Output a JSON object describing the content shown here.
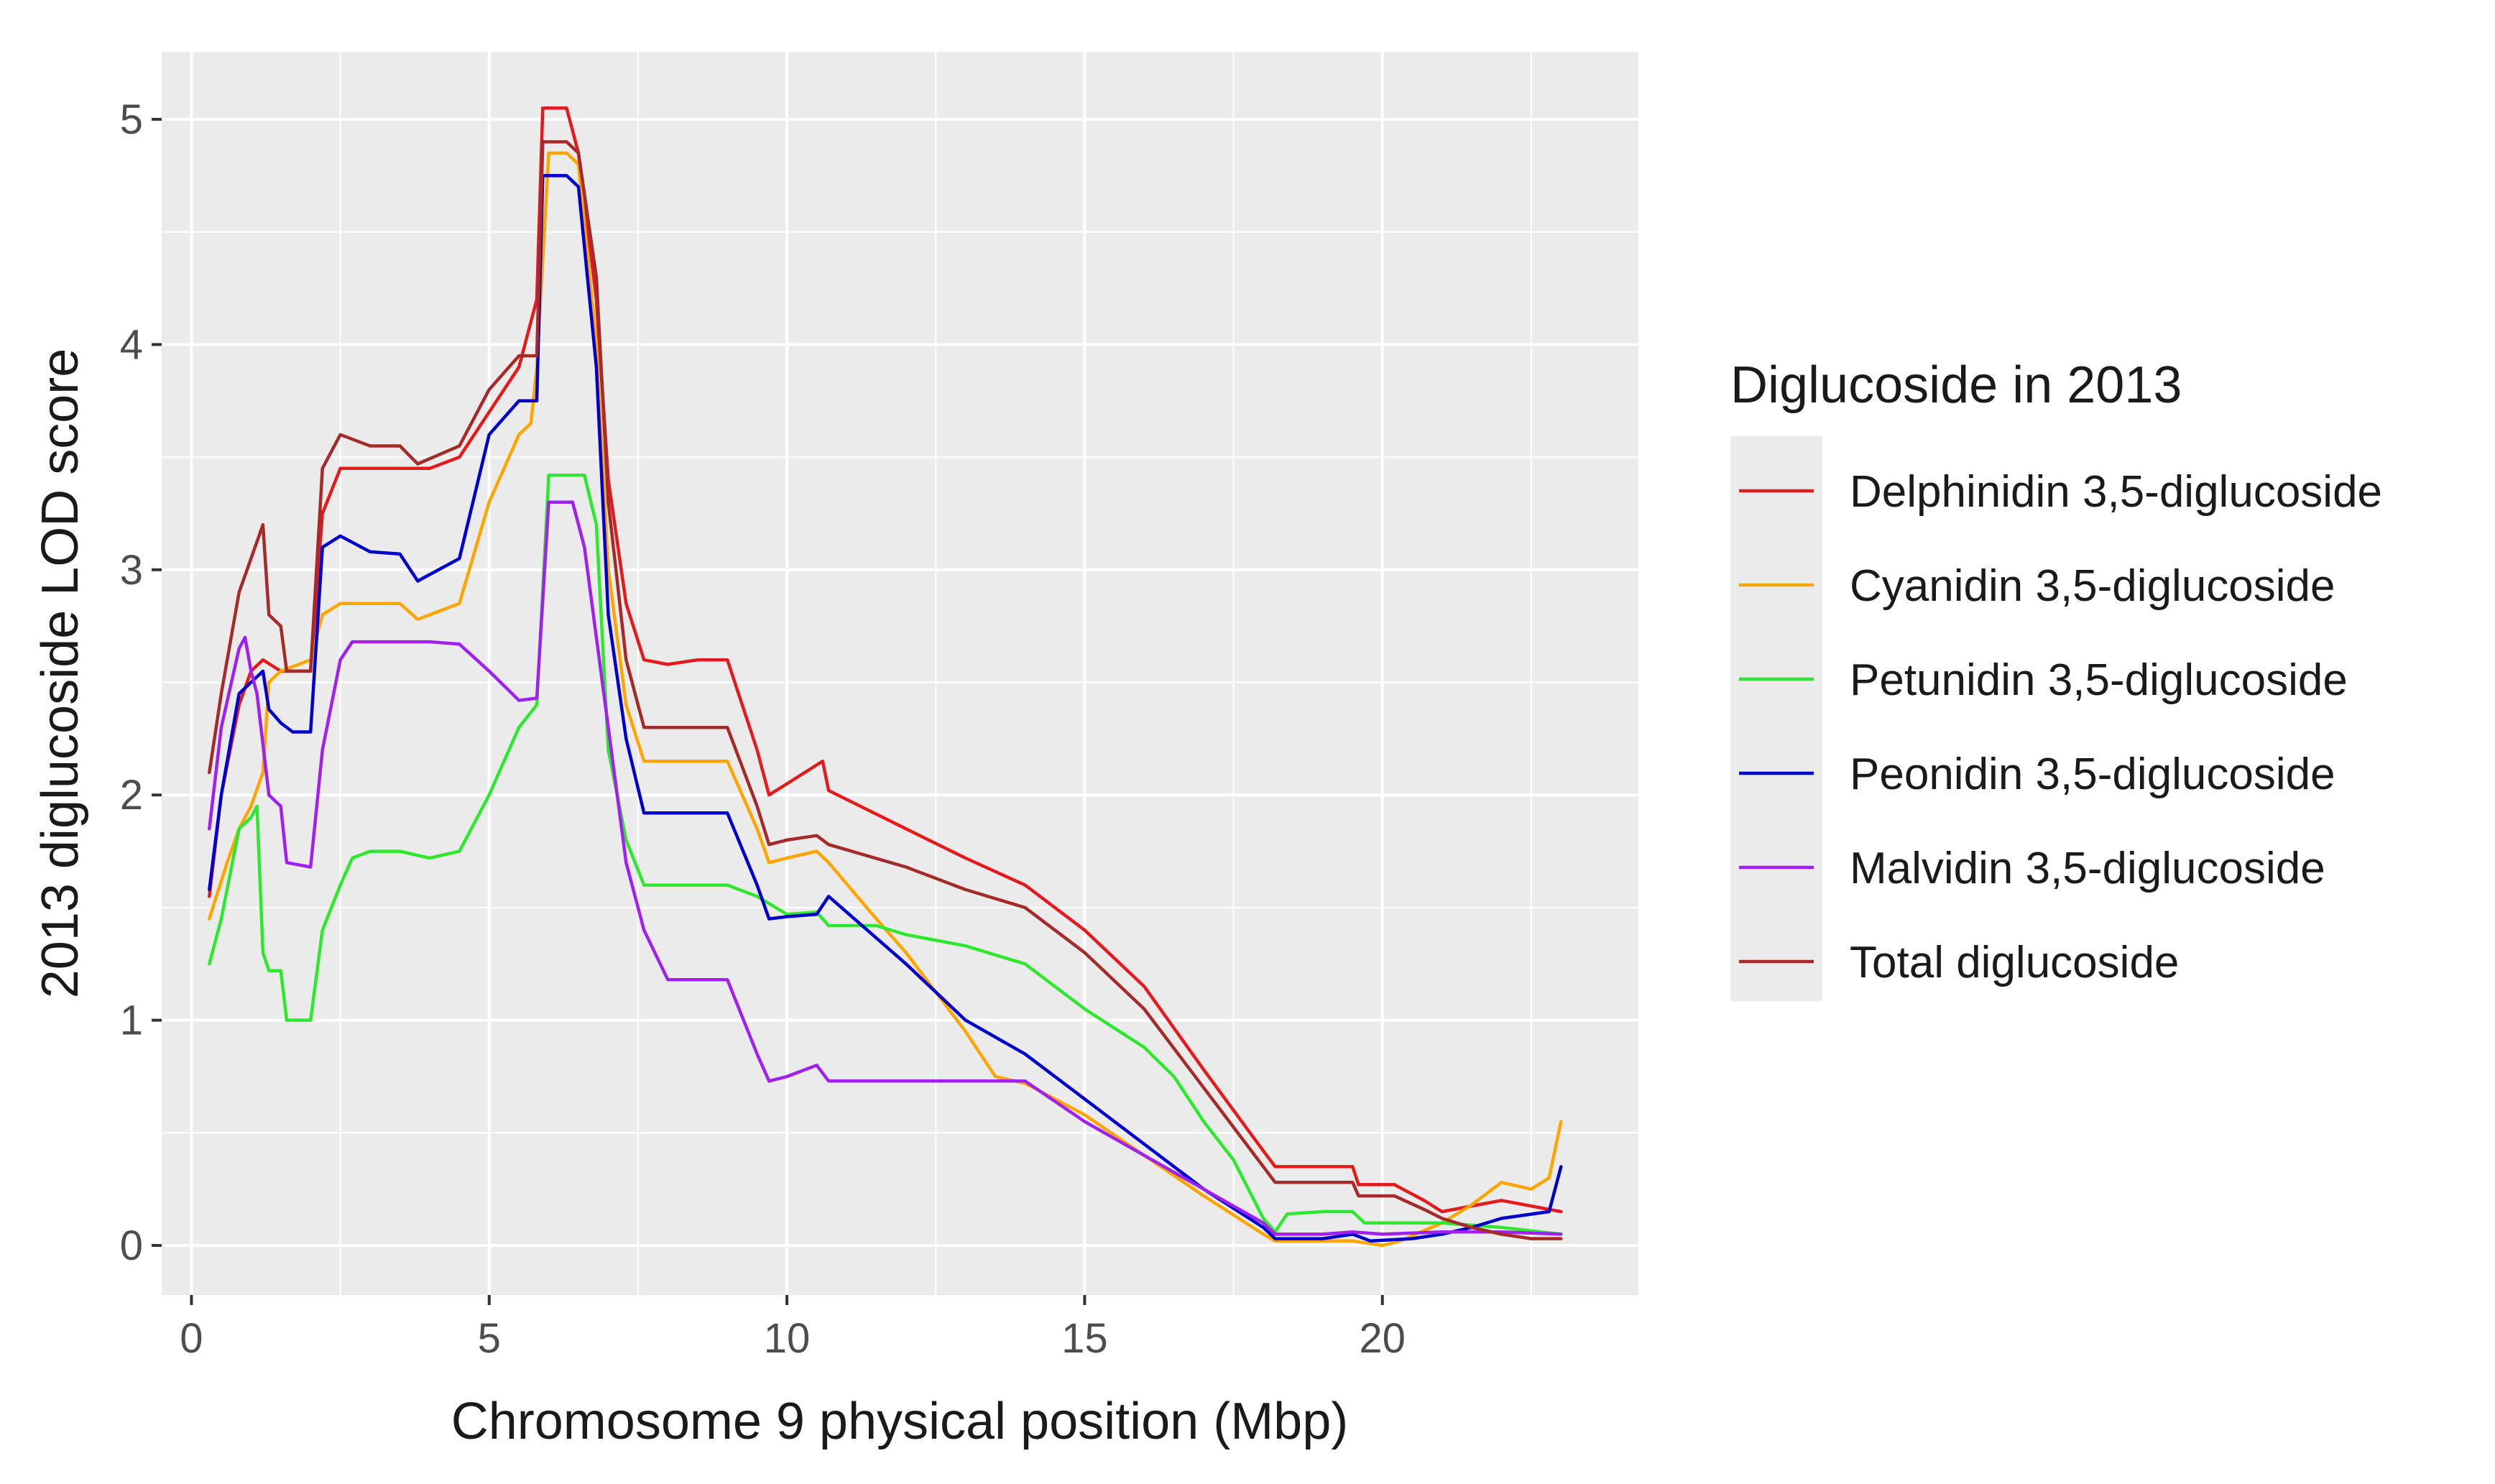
{
  "chart_data": {
    "type": "line",
    "xlabel": "Chromosome 9 physical position (Mbp)",
    "ylabel": "2013 diglucoside LOD score",
    "xlim": [
      -0.5,
      24.3
    ],
    "ylim": [
      -0.22,
      5.3
    ],
    "x_ticks": [
      0,
      5,
      10,
      15,
      20
    ],
    "x_tick_labels": [
      "0",
      "5",
      "10",
      "15",
      "20"
    ],
    "y_ticks": [
      0,
      1,
      2,
      3,
      4,
      5
    ],
    "y_tick_labels": [
      "0",
      "1",
      "2",
      "3",
      "4",
      "5"
    ],
    "grid": true,
    "legend": {
      "title": "Diglucoside in 2013",
      "position": "right"
    },
    "series": [
      {
        "name": "Delphinidin 3,5-diglucoside",
        "color": "#e41a1c",
        "points": [
          [
            0.3,
            1.55
          ],
          [
            0.5,
            2.0
          ],
          [
            0.8,
            2.4
          ],
          [
            1.0,
            2.55
          ],
          [
            1.2,
            2.6
          ],
          [
            1.5,
            2.55
          ],
          [
            2.0,
            2.55
          ],
          [
            2.2,
            3.25
          ],
          [
            2.5,
            3.45
          ],
          [
            3.0,
            3.45
          ],
          [
            3.5,
            3.45
          ],
          [
            4.0,
            3.45
          ],
          [
            4.5,
            3.5
          ],
          [
            5.0,
            3.7
          ],
          [
            5.5,
            3.9
          ],
          [
            5.8,
            4.2
          ],
          [
            5.9,
            5.05
          ],
          [
            6.3,
            5.05
          ],
          [
            6.5,
            4.85
          ],
          [
            6.8,
            4.2
          ],
          [
            7.0,
            3.4
          ],
          [
            7.3,
            2.85
          ],
          [
            7.6,
            2.6
          ],
          [
            8.0,
            2.58
          ],
          [
            8.5,
            2.6
          ],
          [
            9.0,
            2.6
          ],
          [
            9.5,
            2.2
          ],
          [
            9.7,
            2.0
          ],
          [
            10.0,
            2.05
          ],
          [
            10.6,
            2.15
          ],
          [
            10.7,
            2.02
          ],
          [
            12.0,
            1.85
          ],
          [
            13.0,
            1.72
          ],
          [
            14.0,
            1.6
          ],
          [
            15.0,
            1.4
          ],
          [
            16.0,
            1.15
          ],
          [
            17.0,
            0.78
          ],
          [
            18.0,
            0.42
          ],
          [
            18.2,
            0.35
          ],
          [
            19.0,
            0.35
          ],
          [
            19.5,
            0.35
          ],
          [
            19.6,
            0.27
          ],
          [
            20.2,
            0.27
          ],
          [
            20.7,
            0.2
          ],
          [
            21.0,
            0.15
          ],
          [
            22.0,
            0.2
          ],
          [
            23.0,
            0.15
          ]
        ]
      },
      {
        "name": "Cyanidin 3,5-diglucoside",
        "color": "#ffa500",
        "points": [
          [
            0.3,
            1.45
          ],
          [
            0.6,
            1.7
          ],
          [
            0.8,
            1.85
          ],
          [
            1.0,
            1.95
          ],
          [
            1.2,
            2.1
          ],
          [
            1.3,
            2.5
          ],
          [
            1.5,
            2.55
          ],
          [
            2.0,
            2.6
          ],
          [
            2.2,
            2.8
          ],
          [
            2.5,
            2.85
          ],
          [
            3.0,
            2.85
          ],
          [
            3.5,
            2.85
          ],
          [
            3.8,
            2.78
          ],
          [
            4.5,
            2.85
          ],
          [
            5.0,
            3.3
          ],
          [
            5.5,
            3.6
          ],
          [
            5.7,
            3.65
          ],
          [
            5.8,
            3.9
          ],
          [
            6.0,
            4.85
          ],
          [
            6.3,
            4.85
          ],
          [
            6.5,
            4.8
          ],
          [
            6.8,
            4.0
          ],
          [
            7.0,
            3.0
          ],
          [
            7.3,
            2.4
          ],
          [
            7.6,
            2.15
          ],
          [
            8.0,
            2.15
          ],
          [
            9.0,
            2.15
          ],
          [
            9.5,
            1.85
          ],
          [
            9.7,
            1.7
          ],
          [
            10.0,
            1.72
          ],
          [
            10.5,
            1.75
          ],
          [
            10.7,
            1.7
          ],
          [
            11.5,
            1.45
          ],
          [
            12.0,
            1.3
          ],
          [
            13.0,
            0.95
          ],
          [
            13.5,
            0.75
          ],
          [
            14.0,
            0.72
          ],
          [
            15.0,
            0.58
          ],
          [
            16.0,
            0.4
          ],
          [
            17.0,
            0.22
          ],
          [
            18.0,
            0.05
          ],
          [
            18.2,
            0.02
          ],
          [
            19.0,
            0.02
          ],
          [
            19.5,
            0.02
          ],
          [
            20.0,
            0.0
          ],
          [
            20.3,
            0.02
          ],
          [
            21.0,
            0.1
          ],
          [
            21.5,
            0.18
          ],
          [
            22.0,
            0.28
          ],
          [
            22.5,
            0.25
          ],
          [
            22.8,
            0.3
          ],
          [
            23.0,
            0.55
          ]
        ]
      },
      {
        "name": "Petunidin 3,5-diglucoside",
        "color": "#2ee82e",
        "points": [
          [
            0.3,
            1.25
          ],
          [
            0.5,
            1.45
          ],
          [
            0.8,
            1.85
          ],
          [
            1.0,
            1.9
          ],
          [
            1.1,
            1.95
          ],
          [
            1.2,
            1.3
          ],
          [
            1.3,
            1.22
          ],
          [
            1.5,
            1.22
          ],
          [
            1.6,
            1.0
          ],
          [
            2.0,
            1.0
          ],
          [
            2.2,
            1.4
          ],
          [
            2.5,
            1.6
          ],
          [
            2.7,
            1.72
          ],
          [
            3.0,
            1.75
          ],
          [
            3.5,
            1.75
          ],
          [
            4.0,
            1.72
          ],
          [
            4.5,
            1.75
          ],
          [
            5.0,
            2.0
          ],
          [
            5.5,
            2.3
          ],
          [
            5.8,
            2.4
          ],
          [
            6.0,
            3.42
          ],
          [
            6.6,
            3.42
          ],
          [
            6.8,
            3.2
          ],
          [
            7.0,
            2.2
          ],
          [
            7.3,
            1.8
          ],
          [
            7.6,
            1.6
          ],
          [
            8.0,
            1.6
          ],
          [
            8.5,
            1.6
          ],
          [
            9.0,
            1.6
          ],
          [
            9.5,
            1.55
          ],
          [
            10.0,
            1.47
          ],
          [
            10.5,
            1.48
          ],
          [
            10.7,
            1.42
          ],
          [
            11.5,
            1.42
          ],
          [
            12.0,
            1.38
          ],
          [
            13.0,
            1.33
          ],
          [
            14.0,
            1.25
          ],
          [
            15.0,
            1.05
          ],
          [
            16.0,
            0.88
          ],
          [
            16.5,
            0.75
          ],
          [
            17.0,
            0.55
          ],
          [
            17.5,
            0.38
          ],
          [
            18.0,
            0.12
          ],
          [
            18.2,
            0.06
          ],
          [
            18.4,
            0.14
          ],
          [
            19.0,
            0.15
          ],
          [
            19.5,
            0.15
          ],
          [
            19.7,
            0.1
          ],
          [
            20.5,
            0.1
          ],
          [
            21.0,
            0.1
          ],
          [
            22.0,
            0.08
          ],
          [
            23.0,
            0.05
          ]
        ]
      },
      {
        "name": "Peonidin 3,5-diglucoside",
        "color": "#0000cd",
        "points": [
          [
            0.3,
            1.58
          ],
          [
            0.5,
            2.0
          ],
          [
            0.8,
            2.45
          ],
          [
            1.0,
            2.5
          ],
          [
            1.2,
            2.55
          ],
          [
            1.3,
            2.38
          ],
          [
            1.5,
            2.32
          ],
          [
            1.7,
            2.28
          ],
          [
            2.0,
            2.28
          ],
          [
            2.2,
            3.1
          ],
          [
            2.5,
            3.15
          ],
          [
            3.0,
            3.08
          ],
          [
            3.5,
            3.07
          ],
          [
            3.8,
            2.95
          ],
          [
            4.5,
            3.05
          ],
          [
            5.0,
            3.6
          ],
          [
            5.5,
            3.75
          ],
          [
            5.8,
            3.75
          ],
          [
            5.9,
            4.75
          ],
          [
            6.3,
            4.75
          ],
          [
            6.5,
            4.7
          ],
          [
            6.8,
            3.9
          ],
          [
            7.0,
            2.8
          ],
          [
            7.3,
            2.25
          ],
          [
            7.6,
            1.92
          ],
          [
            8.0,
            1.92
          ],
          [
            9.0,
            1.92
          ],
          [
            9.5,
            1.6
          ],
          [
            9.7,
            1.45
          ],
          [
            10.0,
            1.46
          ],
          [
            10.5,
            1.47
          ],
          [
            10.7,
            1.55
          ],
          [
            12.0,
            1.25
          ],
          [
            13.0,
            1.0
          ],
          [
            14.0,
            0.85
          ],
          [
            15.0,
            0.65
          ],
          [
            16.0,
            0.45
          ],
          [
            17.0,
            0.25
          ],
          [
            18.0,
            0.08
          ],
          [
            18.2,
            0.03
          ],
          [
            19.0,
            0.03
          ],
          [
            19.5,
            0.05
          ],
          [
            19.8,
            0.02
          ],
          [
            20.5,
            0.03
          ],
          [
            21.0,
            0.05
          ],
          [
            21.5,
            0.08
          ],
          [
            22.0,
            0.12
          ],
          [
            22.8,
            0.15
          ],
          [
            23.0,
            0.35
          ]
        ]
      },
      {
        "name": "Malvidin 3,5-diglucoside",
        "color": "#a020f0",
        "points": [
          [
            0.3,
            1.85
          ],
          [
            0.5,
            2.3
          ],
          [
            0.8,
            2.65
          ],
          [
            0.9,
            2.7
          ],
          [
            1.0,
            2.55
          ],
          [
            1.1,
            2.45
          ],
          [
            1.3,
            2.0
          ],
          [
            1.5,
            1.95
          ],
          [
            1.6,
            1.7
          ],
          [
            2.0,
            1.68
          ],
          [
            2.2,
            2.2
          ],
          [
            2.5,
            2.6
          ],
          [
            2.7,
            2.68
          ],
          [
            3.0,
            2.68
          ],
          [
            3.5,
            2.68
          ],
          [
            4.0,
            2.68
          ],
          [
            4.5,
            2.67
          ],
          [
            5.0,
            2.55
          ],
          [
            5.5,
            2.42
          ],
          [
            5.8,
            2.43
          ],
          [
            6.0,
            3.3
          ],
          [
            6.4,
            3.3
          ],
          [
            6.6,
            3.1
          ],
          [
            7.0,
            2.3
          ],
          [
            7.3,
            1.7
          ],
          [
            7.6,
            1.4
          ],
          [
            8.0,
            1.18
          ],
          [
            8.5,
            1.18
          ],
          [
            9.0,
            1.18
          ],
          [
            9.5,
            0.85
          ],
          [
            9.7,
            0.73
          ],
          [
            10.0,
            0.75
          ],
          [
            10.5,
            0.8
          ],
          [
            10.7,
            0.73
          ],
          [
            12.0,
            0.73
          ],
          [
            13.0,
            0.73
          ],
          [
            14.0,
            0.73
          ],
          [
            15.0,
            0.55
          ],
          [
            16.0,
            0.4
          ],
          [
            17.0,
            0.25
          ],
          [
            18.0,
            0.1
          ],
          [
            18.2,
            0.05
          ],
          [
            19.0,
            0.05
          ],
          [
            19.5,
            0.06
          ],
          [
            20.0,
            0.05
          ],
          [
            21.0,
            0.06
          ],
          [
            22.0,
            0.06
          ],
          [
            23.0,
            0.05
          ]
        ]
      },
      {
        "name": "Total diglucoside",
        "color": "#a52a2a",
        "points": [
          [
            0.3,
            2.1
          ],
          [
            0.5,
            2.45
          ],
          [
            0.8,
            2.9
          ],
          [
            1.0,
            3.05
          ],
          [
            1.2,
            3.2
          ],
          [
            1.3,
            2.8
          ],
          [
            1.5,
            2.75
          ],
          [
            1.6,
            2.55
          ],
          [
            2.0,
            2.55
          ],
          [
            2.2,
            3.45
          ],
          [
            2.5,
            3.6
          ],
          [
            3.0,
            3.55
          ],
          [
            3.5,
            3.55
          ],
          [
            3.8,
            3.47
          ],
          [
            4.5,
            3.55
          ],
          [
            5.0,
            3.8
          ],
          [
            5.5,
            3.95
          ],
          [
            5.8,
            3.95
          ],
          [
            5.9,
            4.9
          ],
          [
            6.3,
            4.9
          ],
          [
            6.5,
            4.85
          ],
          [
            6.8,
            4.3
          ],
          [
            7.0,
            3.3
          ],
          [
            7.3,
            2.6
          ],
          [
            7.6,
            2.3
          ],
          [
            8.0,
            2.3
          ],
          [
            9.0,
            2.3
          ],
          [
            9.5,
            1.95
          ],
          [
            9.7,
            1.78
          ],
          [
            10.0,
            1.8
          ],
          [
            10.5,
            1.82
          ],
          [
            10.7,
            1.78
          ],
          [
            12.0,
            1.68
          ],
          [
            13.0,
            1.58
          ],
          [
            14.0,
            1.5
          ],
          [
            15.0,
            1.3
          ],
          [
            16.0,
            1.05
          ],
          [
            17.0,
            0.7
          ],
          [
            18.0,
            0.35
          ],
          [
            18.2,
            0.28
          ],
          [
            19.0,
            0.28
          ],
          [
            19.5,
            0.28
          ],
          [
            19.6,
            0.22
          ],
          [
            20.2,
            0.22
          ],
          [
            20.7,
            0.16
          ],
          [
            21.0,
            0.12
          ],
          [
            21.5,
            0.08
          ],
          [
            22.0,
            0.05
          ],
          [
            22.5,
            0.03
          ],
          [
            23.0,
            0.03
          ]
        ]
      }
    ]
  }
}
